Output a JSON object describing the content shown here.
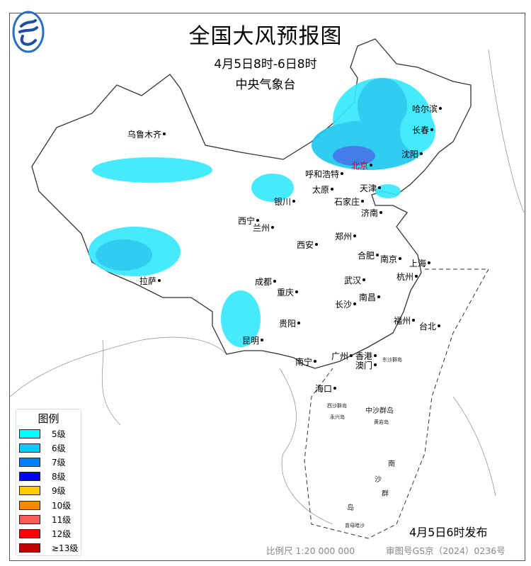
{
  "header": {
    "title": "全国大风预报图",
    "period": "4月5日8时-6日8时",
    "issuer": "中央气象台"
  },
  "logo": {
    "icon": "cma-logo-icon"
  },
  "cities": [
    "哈尔滨",
    "长春",
    "沈阳",
    "北京",
    "天津",
    "呼和浩特",
    "太原",
    "石家庄",
    "济南",
    "银川",
    "西宁",
    "兰州",
    "乌鲁木齐",
    "西安",
    "郑州",
    "合肥",
    "南京",
    "上海",
    "武汉",
    "杭州",
    "成都",
    "重庆",
    "南昌",
    "长沙",
    "拉萨",
    "福州",
    "台北",
    "贵阳",
    "昆明",
    "广州",
    "香港",
    "澳门",
    "南宁",
    "海口"
  ],
  "islands": [
    "东沙群岛",
    "西沙群岛",
    "中沙群岛",
    "南",
    "沙",
    "群",
    "岛",
    "黄岩岛",
    "永兴岛",
    "曾母暗沙"
  ],
  "legend": {
    "title": "图例",
    "items": [
      {
        "label": "5级",
        "color": "#00ffff"
      },
      {
        "label": "6级",
        "color": "#00ccf5"
      },
      {
        "label": "7级",
        "color": "#0080ff"
      },
      {
        "label": "8级",
        "color": "#0000ff"
      },
      {
        "label": "9级",
        "color": "#ffcc00"
      },
      {
        "label": "10级",
        "color": "#ff8800"
      },
      {
        "label": "11级",
        "color": "#ff5a5a"
      },
      {
        "label": "12级",
        "color": "#ff0000"
      },
      {
        "label": "≥13级",
        "color": "#c00000"
      }
    ]
  },
  "footer": {
    "published": "4月5日6时发布",
    "scale": "比例尺 1:20 000 000",
    "review_no": "审图号GS京（2024）0236号"
  }
}
